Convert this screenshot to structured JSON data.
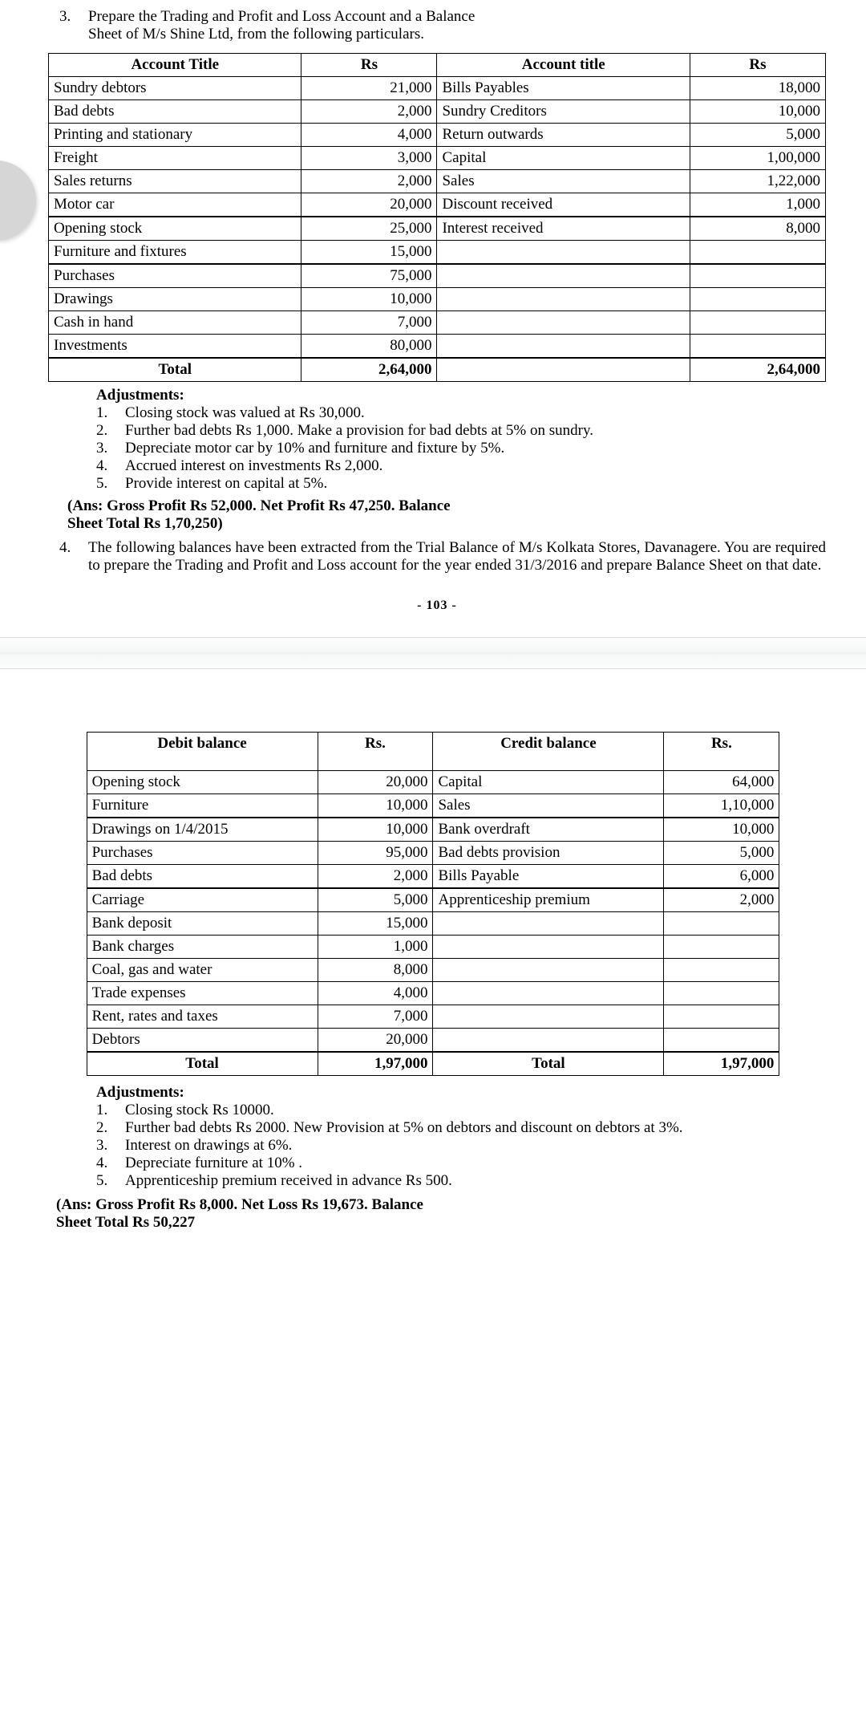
{
  "q3": {
    "number": "3.",
    "text_l1": "Prepare the Trading and Profit and Loss Account and a Balance",
    "text_l2": "Sheet of M/s Shine Ltd, from the following particulars."
  },
  "table1": {
    "headers": [
      "Account Title",
      "Rs",
      "Account title",
      "Rs"
    ],
    "rows": [
      [
        "Sundry debtors",
        "21,000",
        "Bills Payables",
        "18,000"
      ],
      [
        "Bad debts",
        "2,000",
        "Sundry Creditors",
        "10,000"
      ],
      [
        "Printing and stationary",
        "4,000",
        "Return outwards",
        "5,000"
      ],
      [
        "Freight",
        "3,000",
        "Capital",
        "1,00,000"
      ],
      [
        "Sales returns",
        "2,000",
        "Sales",
        "1,22,000"
      ],
      [
        "Motor car",
        "20,000",
        "Discount received",
        "1,000"
      ],
      [
        "Opening stock",
        "25,000",
        "Interest received",
        "8,000"
      ],
      [
        "Furniture and fixtures",
        "15,000",
        "",
        ""
      ],
      [
        "Purchases",
        "75,000",
        "",
        ""
      ],
      [
        "Drawings",
        "10,000",
        "",
        ""
      ],
      [
        "Cash in hand",
        "7,000",
        "",
        ""
      ],
      [
        "Investments",
        "80,000",
        "",
        ""
      ]
    ],
    "total": [
      "Total",
      "2,64,000",
      "",
      "2,64,000"
    ],
    "sep_after": [
      6,
      8
    ]
  },
  "adj1": {
    "title": "Adjustments:",
    "items": [
      [
        "1.",
        "Closing stock was valued at Rs 30,000."
      ],
      [
        "2.",
        "Further bad debts Rs 1,000. Make a provision for bad debts at 5% on sundry."
      ],
      [
        "3.",
        "Depreciate motor car by 10% and furniture and fixture by 5%."
      ],
      [
        "4.",
        "Accrued interest on investments Rs 2,000."
      ],
      [
        "5.",
        "Provide interest on capital at 5%."
      ]
    ]
  },
  "ans1_l1": "(Ans: Gross Profit Rs 52,000. Net Profit Rs 47,250. Balance",
  "ans1_l2": "Sheet Total Rs 1,70,250)",
  "q4": {
    "number": "4.",
    "text": "The following balances have been extracted from the Trial Balance of M/s Kolkata Stores, Davanagere. You are required to prepare the Trading and Profit and Loss account for the year ended 31/3/2016 and prepare Balance Sheet on that date."
  },
  "pagenum": "- 103 -",
  "table2": {
    "headers": [
      "Debit balance",
      "Rs.",
      "Credit balance",
      "Rs."
    ],
    "rows": [
      [
        "Opening stock",
        "20,000",
        "Capital",
        "64,000"
      ],
      [
        "Furniture",
        "10,000",
        "Sales",
        "1,10,000"
      ],
      [
        "Drawings on 1/4/2015",
        "10,000",
        "Bank overdraft",
        "10,000"
      ],
      [
        "Purchases",
        "95,000",
        "Bad debts provision",
        "5,000"
      ],
      [
        "Bad debts",
        "2,000",
        "Bills Payable",
        "6,000"
      ],
      [
        "Carriage",
        "5,000",
        "Apprenticeship premium",
        "2,000"
      ],
      [
        "Bank deposit",
        "15,000",
        "",
        ""
      ],
      [
        "Bank charges",
        "1,000",
        "",
        ""
      ],
      [
        "Coal, gas and water",
        "8,000",
        "",
        ""
      ],
      [
        "Trade expenses",
        "4,000",
        "",
        ""
      ],
      [
        "Rent, rates and taxes",
        "7,000",
        "",
        ""
      ],
      [
        "Debtors",
        "20,000",
        "",
        ""
      ]
    ],
    "total": [
      "Total",
      "1,97,000",
      "Total",
      "1,97,000"
    ],
    "sep_after": [
      2,
      5
    ]
  },
  "adj2": {
    "title": "Adjustments:",
    "items": [
      [
        "1.",
        "Closing stock Rs 10000."
      ],
      [
        "2.",
        "Further bad debts Rs 2000. New Provision at 5% on debtors and discount on debtors at 3%."
      ],
      [
        "3.",
        "Interest on drawings at 6%."
      ],
      [
        "4.",
        "Depreciate furniture at 10% ."
      ],
      [
        "5.",
        "Apprenticeship premium received in advance Rs 500."
      ]
    ]
  },
  "ans2_l1": "(Ans: Gross Profit Rs 8,000. Net Loss Rs 19,673. Balance",
  "ans2_l2": "Sheet Total Rs 50,227"
}
